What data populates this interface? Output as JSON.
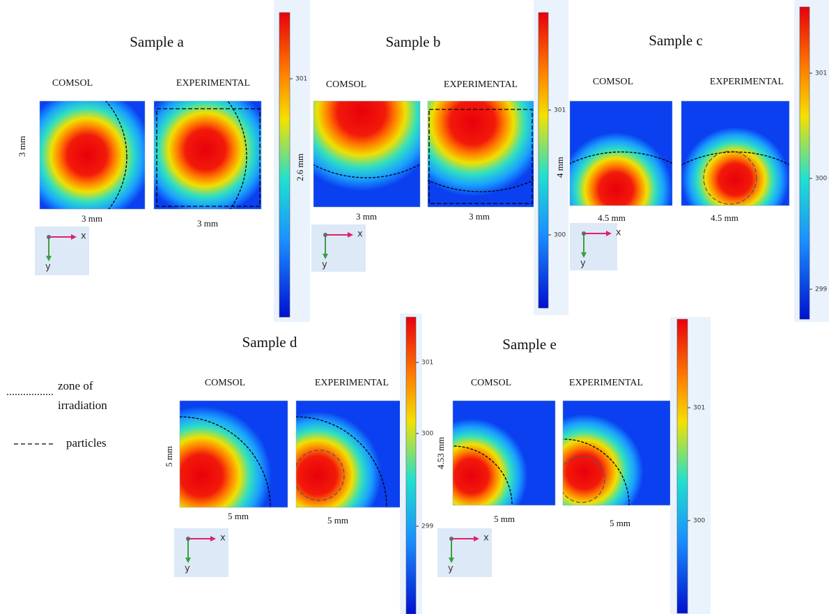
{
  "samples": [
    {
      "title": "Sample a",
      "comsol": "COMSOL",
      "experimental": "EXPERIMENTAL",
      "height": "3 mm",
      "width_comsol": "3 mm",
      "width_experimental": "3 mm",
      "colorbar_ticks": [
        301
      ]
    },
    {
      "title": "Sample b",
      "comsol": "COMSOL",
      "experimental": "EXPERIMENTAL",
      "height": "2.6 mm",
      "width_comsol": "3 mm",
      "width_experimental": "3 mm",
      "colorbar_ticks": [
        301,
        300
      ]
    },
    {
      "title": "Sample c",
      "comsol": "COMSOL",
      "experimental": "EXPERIMENTAL",
      "height": "4 mm",
      "width_comsol": "4.5 mm",
      "width_experimental": "4.5 mm",
      "colorbar_ticks": [
        301,
        300,
        299
      ]
    },
    {
      "title": "Sample d",
      "comsol": "COMSOL",
      "experimental": "EXPERIMENTAL",
      "height": "5 mm",
      "width_comsol": "5 mm",
      "width_experimental": "5 mm",
      "colorbar_ticks": [
        301,
        300,
        299
      ]
    },
    {
      "title": "Sample e",
      "comsol": "COMSOL",
      "experimental": "EXPERIMENTAL",
      "height": "4.53 mm",
      "width_comsol": "5 mm",
      "width_experimental": "5 mm",
      "colorbar_ticks": [
        301,
        300
      ]
    }
  ],
  "axes": {
    "x": "x",
    "y": "y"
  },
  "legend": {
    "zone_line1": "zone of",
    "zone_line2": "irradiation",
    "particles": "particles"
  }
}
